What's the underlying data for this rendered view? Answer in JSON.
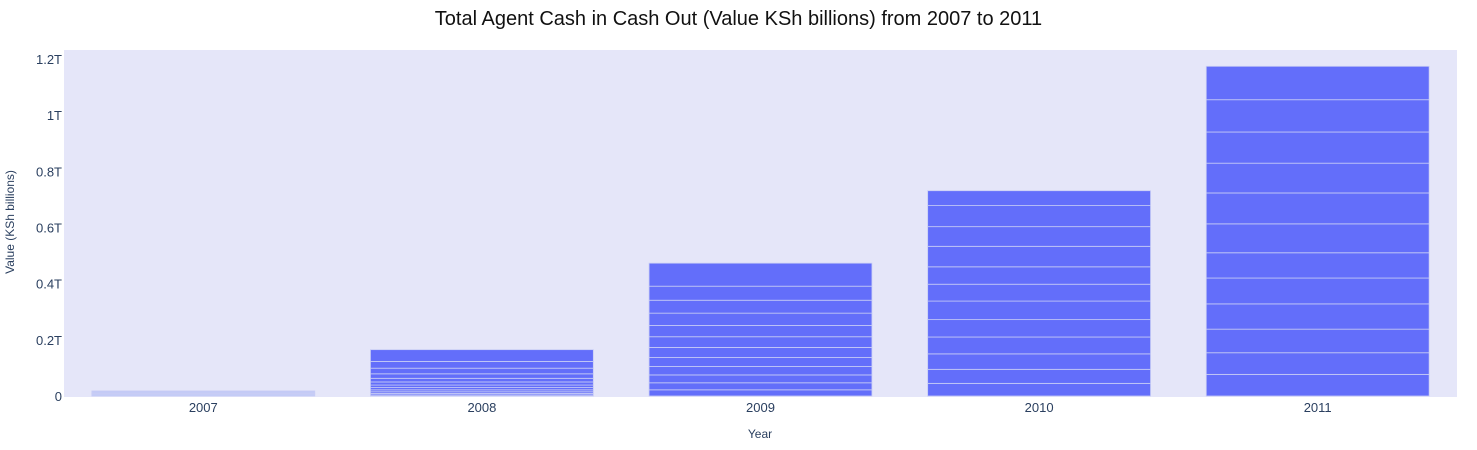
{
  "chart_data": {
    "type": "bar",
    "title": "Total Agent Cash in Cash Out (Value KSh billions) from 2007 to 2011",
    "xlabel": "Year",
    "ylabel": "Value (KSh billions)",
    "categories": [
      "2007",
      "2008",
      "2009",
      "2010",
      "2011"
    ],
    "ylim": [
      0,
      1.23
    ],
    "y_unit": "T",
    "yticks": [
      0,
      0.2,
      0.4,
      0.6,
      0.8,
      1,
      1.2
    ],
    "ytick_labels": [
      "0",
      "0.2T",
      "0.4T",
      "0.6T",
      "0.8T",
      "1T",
      "1.2T"
    ],
    "stacks": [
      [
        0.0045,
        0.0045,
        0.0045,
        0.0045
      ],
      [
        0.004,
        0.005,
        0.006,
        0.007,
        0.008,
        0.009,
        0.011,
        0.013,
        0.016,
        0.02,
        0.024,
        0.042
      ],
      [
        0.022,
        0.025,
        0.028,
        0.03,
        0.032,
        0.036,
        0.038,
        0.04,
        0.044,
        0.046,
        0.05,
        0.082
      ],
      [
        0.045,
        0.05,
        0.055,
        0.06,
        0.062,
        0.066,
        0.06,
        0.062,
        0.073,
        0.07,
        0.075,
        0.053
      ],
      [
        0.077,
        0.077,
        0.084,
        0.09,
        0.092,
        0.09,
        0.103,
        0.11,
        0.106,
        0.111,
        0.115,
        0.119
      ]
    ],
    "bar_colors": [
      "#bfc8f8",
      "#636efa",
      "#636efa",
      "#636efa",
      "#636efa"
    ],
    "segment_line_color": "#c8cdf5",
    "plot_background": "#e5e6f9",
    "grid": false,
    "legend": "none"
  }
}
